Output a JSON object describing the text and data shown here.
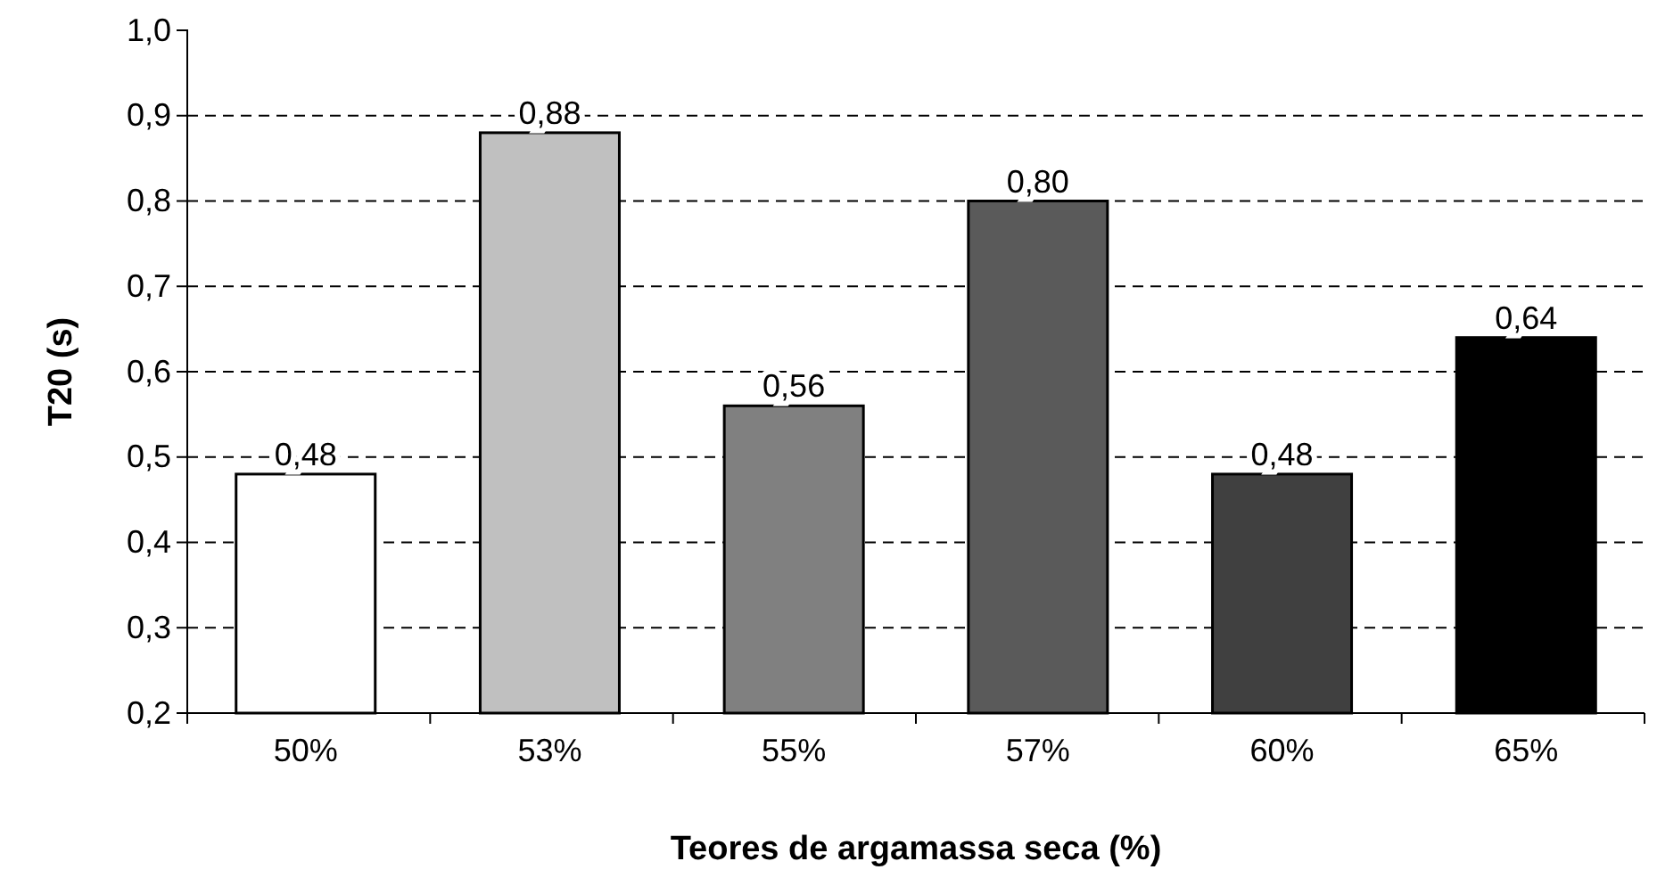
{
  "chart_data": {
    "type": "bar",
    "xlabel": "Teores de argamassa seca (%)",
    "ylabel": "T20 (s)",
    "categories": [
      "50%",
      "53%",
      "55%",
      "57%",
      "60%",
      "65%"
    ],
    "values": [
      0.48,
      0.88,
      0.56,
      0.8,
      0.48,
      0.64
    ],
    "colors": [
      "#ffffff",
      "#c0c0c0",
      "#808080",
      "#5a5a5a",
      "#404040",
      "#000000"
    ],
    "value_labels": [
      "0,48",
      "0,88",
      "0,56",
      "0,80",
      "0,48",
      "0,64"
    ],
    "ylim": [
      0.2,
      1.0
    ],
    "yticks": [
      {
        "value": 0.2,
        "label": "0,2"
      },
      {
        "value": 0.3,
        "label": "0,3"
      },
      {
        "value": 0.4,
        "label": "0,4"
      },
      {
        "value": 0.5,
        "label": "0,5"
      },
      {
        "value": 0.6,
        "label": "0,6"
      },
      {
        "value": 0.7,
        "label": "0,7"
      },
      {
        "value": 0.8,
        "label": "0,8"
      },
      {
        "value": 0.9,
        "label": "0,9"
      },
      {
        "value": 1.0,
        "label": "1,0"
      }
    ],
    "grid": "y"
  }
}
